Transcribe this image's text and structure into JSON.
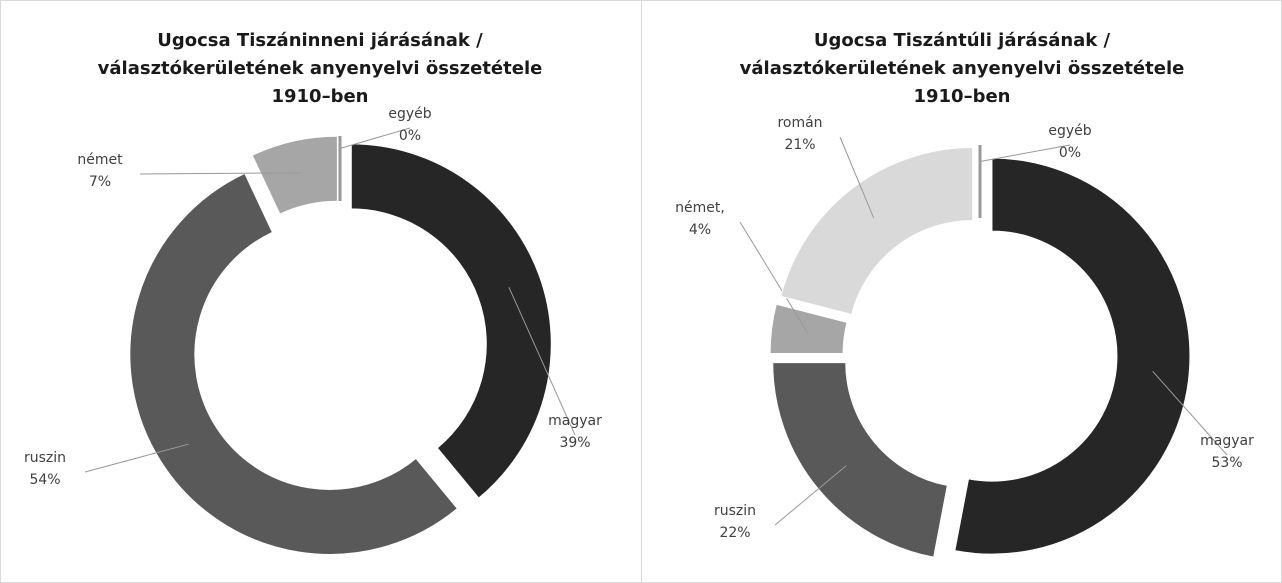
{
  "chart_data": [
    {
      "type": "pie",
      "donut": true,
      "title": [
        "Ugocsa Tiszáninneni járásának /",
        "választókerületének anyenyelvi összetétele",
        "1910–ben"
      ],
      "categories": [
        "magyar",
        "ruszin",
        "német",
        "egyéb"
      ],
      "values": [
        39,
        54,
        7,
        0
      ],
      "value_labels": [
        "39%",
        "54%",
        "7%",
        "0%"
      ],
      "colors": [
        "#262626",
        "#595959",
        "#a6a6a6",
        "#ffffff"
      ]
    },
    {
      "type": "pie",
      "donut": true,
      "title": [
        "Ugocsa Tiszántúli járásának /",
        "választókerületének anyenyelvi összetétele",
        "1910–ben"
      ],
      "categories": [
        "magyar",
        "ruszin",
        "német,",
        "román",
        "egyéb"
      ],
      "values": [
        53,
        22,
        4,
        21,
        0
      ],
      "value_labels": [
        "53%",
        "22%",
        "4%",
        "21%",
        "0%"
      ],
      "colors": [
        "#262626",
        "#595959",
        "#a6a6a6",
        "#d9d9d9",
        "#ffffff"
      ]
    }
  ]
}
